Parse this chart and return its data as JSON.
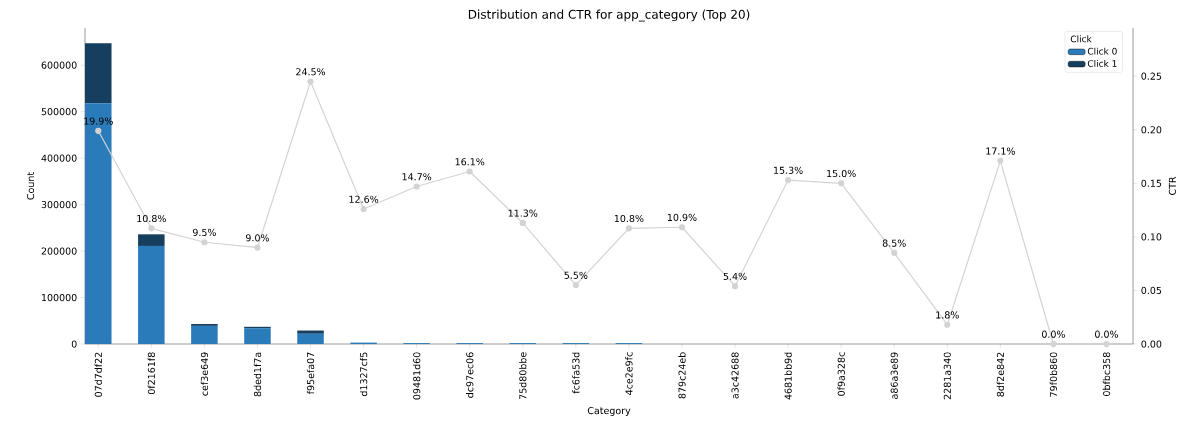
{
  "chart_data": {
    "type": "bar",
    "title": "Distribution and CTR for app_category (Top 20)",
    "xlabel": "Category",
    "ylabel": "Count",
    "y2label": "CTR",
    "legend_title": "Click",
    "categories": [
      "07d7df22",
      "0f2161f8",
      "cef3e649",
      "8ded1f7a",
      "f95efa07",
      "d1327cf5",
      "09481d60",
      "dc97ec06",
      "75d80bbe",
      "fc6fa53d",
      "4ce2e9fc",
      "879c24eb",
      "a3c42688",
      "4681bb9d",
      "0f9a328c",
      "a86a3e89",
      "2281a340",
      "8df2e842",
      "79f0b860",
      "0bfbc358"
    ],
    "stacked": true,
    "legend": "top right",
    "grid": false,
    "marker": "circle",
    "line_style": "solid",
    "series": [
      {
        "name": "Click 0",
        "color": "#2a7bb9",
        "values": [
          518000,
          211000,
          39000,
          34000,
          22000,
          3000,
          2000,
          2000,
          2000,
          2000,
          2000,
          0,
          0,
          0,
          0,
          0,
          0,
          0,
          0,
          0
        ]
      },
      {
        "name": "Click 1",
        "color": "#163f5f",
        "values": [
          129000,
          25000,
          4000,
          3000,
          7000,
          0,
          0,
          0,
          0,
          0,
          0,
          0,
          0,
          0,
          0,
          0,
          0,
          0,
          0,
          0
        ]
      },
      {
        "type": "line",
        "axis": "y2",
        "color": "#d3d3d3",
        "values": [
          0.199,
          0.108,
          0.095,
          0.09,
          0.245,
          0.126,
          0.147,
          0.161,
          0.113,
          0.055,
          0.108,
          0.109,
          0.054,
          0.153,
          0.15,
          0.085,
          0.018,
          0.171,
          0.0,
          0.0
        ],
        "value_labels": [
          "19.9%",
          "10.8%",
          "9.5%",
          "9.0%",
          "24.5%",
          "12.6%",
          "14.7%",
          "16.1%",
          "11.3%",
          "5.5%",
          "10.8%",
          "10.9%",
          "5.4%",
          "15.3%",
          "15.0%",
          "8.5%",
          "1.8%",
          "17.1%",
          "0.0%",
          "0.0%"
        ]
      }
    ],
    "ylim": [
      0,
      680000
    ],
    "yticks": [
      0,
      100000,
      200000,
      300000,
      400000,
      500000,
      600000
    ],
    "y2lim": [
      0,
      0.295
    ],
    "y2ticks": [
      {
        "value": 0,
        "label": "0.00"
      },
      {
        "value": 0.05,
        "label": "0.05"
      },
      {
        "value": 0.1,
        "label": "0.10"
      },
      {
        "value": 0.15,
        "label": "0.15"
      },
      {
        "value": 0.2,
        "label": "0.20"
      },
      {
        "value": 0.25,
        "label": "0.25"
      }
    ]
  }
}
